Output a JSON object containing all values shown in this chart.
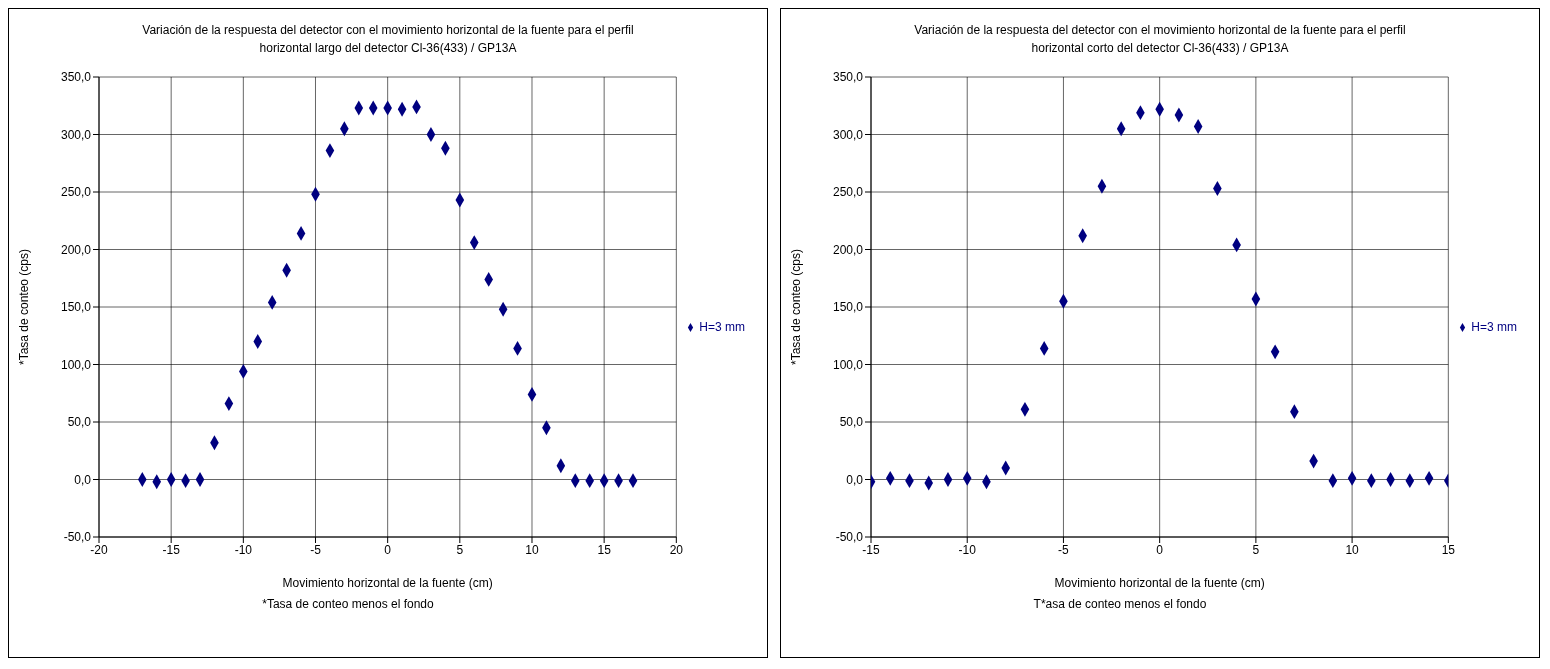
{
  "chart_data": [
    {
      "type": "scatter",
      "title": "Variación de la respuesta  del detector con el movimiento horizontal de la fuente para el perfil horizontal largo del detector Cl-36(433) / GP13A",
      "xlabel": "Movimiento horizontal de la fuente (cm)",
      "ylabel": "*Tasa de conteo (cps)",
      "annotations": [
        "*Tasa de conteo menos el fondo"
      ],
      "x": [
        -17,
        -16,
        -15,
        -14,
        -13,
        -12,
        -11,
        -10,
        -9,
        -8,
        -7,
        -6,
        -5,
        -4,
        -3,
        -2,
        -1,
        0,
        1,
        2,
        3,
        4,
        5,
        6,
        7,
        8,
        9,
        10,
        11,
        12,
        13,
        14,
        15,
        16,
        17
      ],
      "series": [
        {
          "name": "H=3 mm",
          "color": "#000080",
          "values": [
            0,
            -2,
            0,
            -1,
            0,
            32,
            66,
            94,
            120,
            154,
            182,
            214,
            248,
            286,
            305,
            323,
            323,
            323,
            322,
            324,
            300,
            288,
            243,
            206,
            174,
            148,
            114,
            74,
            45,
            12,
            -1,
            -1,
            -1,
            -1,
            -1
          ]
        }
      ],
      "xlim": [
        -20,
        20
      ],
      "xticks": [
        -20,
        -15,
        -10,
        -5,
        0,
        5,
        10,
        15,
        20
      ],
      "ylim": [
        -50,
        350
      ],
      "yticks": [
        {
          "value": -50,
          "label": "-50,0"
        },
        {
          "value": 0,
          "label": "0,0"
        },
        {
          "value": 50,
          "label": "50,0"
        },
        {
          "value": 100,
          "label": "100,0"
        },
        {
          "value": 150,
          "label": "150,0"
        },
        {
          "value": 200,
          "label": "200,0"
        },
        {
          "value": 250,
          "label": "250,0"
        },
        {
          "value": 300,
          "label": "300,0"
        },
        {
          "value": 350,
          "label": "350,0"
        }
      ],
      "grid": true,
      "legend": "right",
      "marker": "diamond"
    },
    {
      "type": "scatter",
      "title": "Variación de la respuesta  del detector con el movimiento horizontal de la fuente para el perfil horizontal corto del detector Cl-36(433) / GP13A",
      "xlabel": "Movimiento horizontal de la fuente (cm)",
      "ylabel": "*Tasa de conteo (cps)",
      "annotations": [
        "T*asa de conteo menos el fondo"
      ],
      "x": [
        -15,
        -14,
        -13,
        -12,
        -11,
        -10,
        -9,
        -8,
        -7,
        -6,
        -5,
        -4,
        -3,
        -2,
        -1,
        0,
        1,
        2,
        3,
        4,
        5,
        6,
        7,
        8,
        9,
        10,
        11,
        12,
        13,
        14,
        15
      ],
      "series": [
        {
          "name": "H=3 mm",
          "color": "#000080",
          "values": [
            -2,
            1,
            -1,
            -3,
            0,
            1,
            -2,
            10,
            61,
            114,
            155,
            212,
            255,
            305,
            319,
            322,
            317,
            307,
            253,
            204,
            157,
            111,
            59,
            16,
            -1,
            1,
            -1,
            0,
            -1,
            1,
            -1
          ]
        }
      ],
      "xlim": [
        -15,
        15
      ],
      "xticks": [
        -15,
        -10,
        -5,
        0,
        5,
        10,
        15
      ],
      "ylim": [
        -50,
        350
      ],
      "yticks": [
        {
          "value": -50,
          "label": "-50,0"
        },
        {
          "value": 0,
          "label": "0,0"
        },
        {
          "value": 50,
          "label": "50,0"
        },
        {
          "value": 100,
          "label": "100,0"
        },
        {
          "value": 150,
          "label": "150,0"
        },
        {
          "value": 200,
          "label": "200,0"
        },
        {
          "value": 250,
          "label": "250,0"
        },
        {
          "value": 300,
          "label": "300,0"
        },
        {
          "value": 350,
          "label": "350,0"
        }
      ],
      "grid": true,
      "legend": "right",
      "marker": "diamond"
    }
  ]
}
